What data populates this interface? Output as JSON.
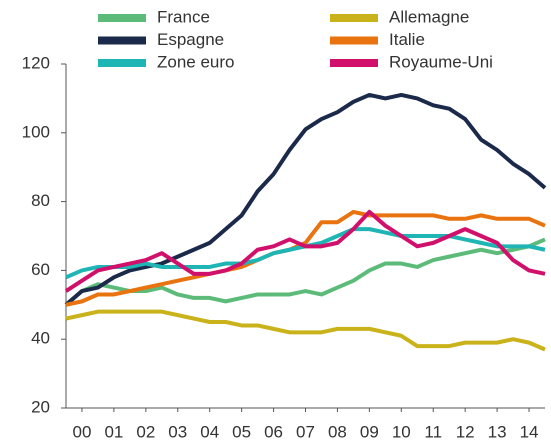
{
  "chart_data": {
    "type": "line",
    "x": [
      2000,
      2000.5,
      2001,
      2001.5,
      2002,
      2002.5,
      2003,
      2003.5,
      2004,
      2004.5,
      2005,
      2005.5,
      2006,
      2006.5,
      2007,
      2007.5,
      2008,
      2008.5,
      2009,
      2009.5,
      2010,
      2010.5,
      2011,
      2011.5,
      2012,
      2012.5,
      2013,
      2013.5,
      2014,
      2014.5,
      2015
    ],
    "series": [
      {
        "name": "France",
        "color": "#5dbb7a",
        "values": [
          50,
          54,
          56,
          55,
          54,
          54,
          55,
          53,
          52,
          52,
          51,
          52,
          53,
          53,
          53,
          54,
          53,
          55,
          57,
          60,
          62,
          62,
          61,
          63,
          64,
          65,
          66,
          65,
          66,
          67,
          69
        ]
      },
      {
        "name": "Allemagne",
        "color": "#c9b21a",
        "values": [
          46,
          47,
          48,
          48,
          48,
          48,
          48,
          47,
          46,
          45,
          45,
          44,
          44,
          43,
          42,
          42,
          42,
          43,
          43,
          43,
          42,
          41,
          38,
          38,
          38,
          39,
          39,
          39,
          40,
          39,
          37
        ]
      },
      {
        "name": "Espagne",
        "color": "#1b2a4a",
        "values": [
          50,
          54,
          55,
          58,
          60,
          61,
          62,
          64,
          66,
          68,
          72,
          76,
          83,
          88,
          95,
          101,
          104,
          106,
          109,
          111,
          110,
          111,
          110,
          108,
          107,
          104,
          98,
          95,
          91,
          88,
          84
        ]
      },
      {
        "name": "Italie",
        "color": "#e8730f",
        "values": [
          50,
          51,
          53,
          53,
          54,
          55,
          56,
          57,
          58,
          59,
          60,
          61,
          63,
          65,
          66,
          68,
          74,
          74,
          77,
          76,
          76,
          76,
          76,
          76,
          75,
          75,
          76,
          75,
          75,
          75,
          73
        ]
      },
      {
        "name": "Zone euro",
        "color": "#1fb5b5",
        "values": [
          58,
          60,
          61,
          61,
          61,
          62,
          61,
          61,
          61,
          61,
          62,
          62,
          63,
          65,
          66,
          67,
          68,
          70,
          72,
          72,
          71,
          70,
          70,
          70,
          70,
          69,
          68,
          67,
          67,
          67,
          66
        ]
      },
      {
        "name": "Royaume-Uni",
        "color": "#d0106a",
        "values": [
          54,
          57,
          60,
          61,
          62,
          63,
          65,
          62,
          59,
          59,
          60,
          62,
          66,
          67,
          69,
          67,
          67,
          68,
          72,
          77,
          73,
          70,
          67,
          68,
          70,
          72,
          70,
          68,
          63,
          60,
          59
        ]
      }
    ],
    "xlim": [
      2000,
      2015
    ],
    "xticks": [
      {
        "value": 2000.5,
        "label": "00"
      },
      {
        "value": 2001.5,
        "label": "01"
      },
      {
        "value": 2002.5,
        "label": "02"
      },
      {
        "value": 2003.5,
        "label": "03"
      },
      {
        "value": 2004.5,
        "label": "04"
      },
      {
        "value": 2005.5,
        "label": "05"
      },
      {
        "value": 2006.5,
        "label": "06"
      },
      {
        "value": 2007.5,
        "label": "07"
      },
      {
        "value": 2008.5,
        "label": "08"
      },
      {
        "value": 2009.5,
        "label": "09"
      },
      {
        "value": 2010.5,
        "label": "10"
      },
      {
        "value": 2011.5,
        "label": "11"
      },
      {
        "value": 2012.5,
        "label": "12"
      },
      {
        "value": 2013.5,
        "label": "13"
      },
      {
        "value": 2014.5,
        "label": "14"
      }
    ],
    "ylim": [
      20,
      120
    ],
    "yticks": [
      20,
      40,
      60,
      80,
      100,
      120
    ],
    "grid": false,
    "legend": "top"
  }
}
